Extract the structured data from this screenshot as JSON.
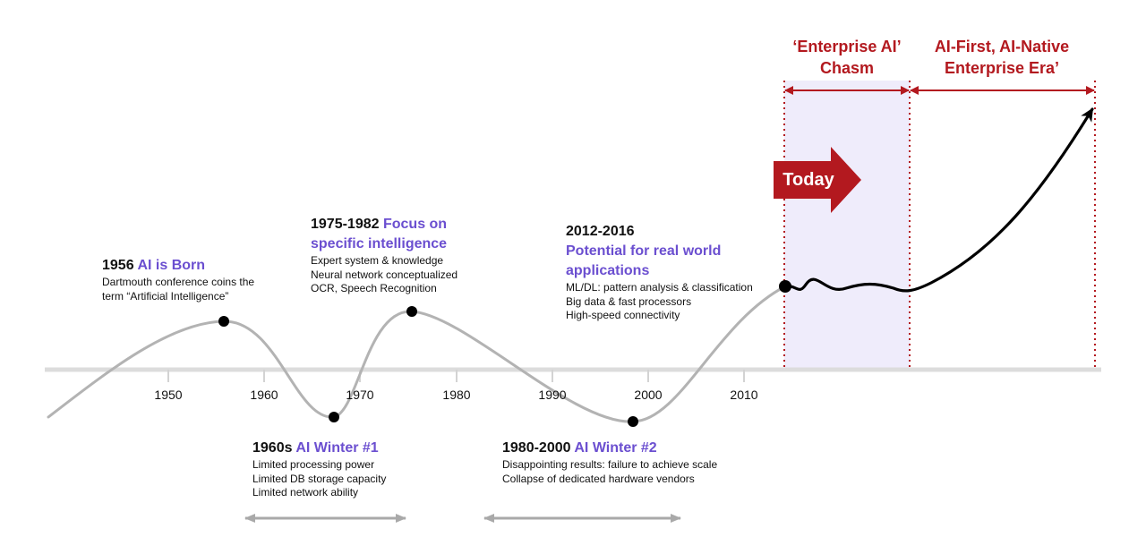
{
  "colors": {
    "accent_purple": "#6b4fd0",
    "era_red": "#b3191f",
    "curve_gray": "#b3b3b3",
    "chasm_fill": "#efecfb"
  },
  "axis_ticks": [
    "1950",
    "1960",
    "1970",
    "1980",
    "1990",
    "2000",
    "2010"
  ],
  "events": [
    {
      "year": "1956",
      "title": "AI is Born",
      "lines": [
        "Dartmouth conference coins the",
        "term “Artificial Intelligence”"
      ]
    },
    {
      "year": "1975-1982",
      "title_line1": "Focus on",
      "title_line2": "specific intelligence",
      "lines": [
        "Expert system & knowledge",
        "Neural network conceptualized",
        "OCR, Speech Recognition"
      ]
    },
    {
      "year": "2012-2016",
      "title_line1": "Potential for real world",
      "title_line2": "applications",
      "lines": [
        "ML/DL: pattern analysis &  classification",
        "Big data & fast processors",
        "High-speed connectivity"
      ]
    },
    {
      "year": "1960s",
      "title": "AI Winter #1",
      "lines": [
        "Limited processing power",
        "Limited DB storage capacity",
        "Limited network ability"
      ]
    },
    {
      "year": "1980-2000",
      "title": "AI Winter #2",
      "lines": [
        "Disappointing results: failure to achieve scale",
        "Collapse of dedicated hardware vendors"
      ]
    }
  ],
  "today_label": "Today",
  "eras": {
    "chasm_line1": "‘Enterprise AI’",
    "chasm_line2": "Chasm",
    "native_line1": "AI-First, AI-Native",
    "native_line2": "Enterprise Era’"
  }
}
